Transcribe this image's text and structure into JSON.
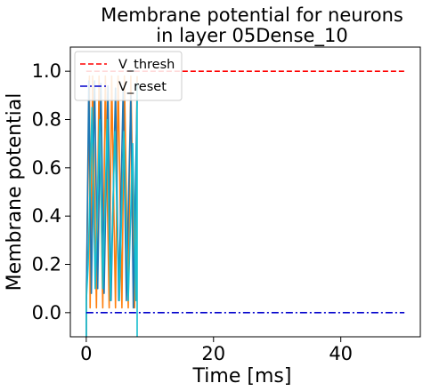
{
  "chart_data": {
    "type": "line",
    "title_line1": "Membrane potential for neurons",
    "title_line2": "in layer 05Dense_10",
    "xlabel": "Time [ms]",
    "ylabel": "Membrane potential",
    "xlim": [
      -2.5,
      52.5
    ],
    "ylim": [
      -0.1,
      1.1
    ],
    "xticks": [
      0,
      20,
      40
    ],
    "xtick_labels": [
      "0",
      "20",
      "40"
    ],
    "yticks": [
      0.0,
      0.2,
      0.4,
      0.6,
      0.8,
      1.0
    ],
    "ytick_labels": [
      "0.0",
      "0.2",
      "0.4",
      "0.6",
      "0.8",
      "1.0"
    ],
    "grid": false,
    "legend_position": "top-left",
    "legend": [
      {
        "label": "V_thresh",
        "color": "#ff0000",
        "dash": "dashed"
      },
      {
        "label": "V_reset",
        "color": "#0000cc",
        "dash": "dashdot"
      }
    ],
    "reference_lines": [
      {
        "name": "V_thresh",
        "y": 1.0,
        "x": [
          0,
          50
        ],
        "color": "#ff0000",
        "dash": "dashed"
      },
      {
        "name": "V_reset",
        "y": 0.0,
        "x": [
          0,
          50
        ],
        "color": "#0000cc",
        "dash": "dashdot"
      }
    ],
    "series": [
      {
        "color": "#ff7f0e",
        "x": [
          0,
          0,
          0.5,
          0.6,
          1,
          1.6,
          2,
          2.6,
          3,
          3.6,
          4,
          4.6,
          5,
          5.6,
          6,
          6.6,
          7,
          7.6,
          8
        ],
        "y": [
          -0.1,
          0.05,
          0.98,
          0.02,
          0.98,
          0.02,
          0.98,
          0.02,
          0.98,
          0.02,
          0.98,
          0.02,
          0.98,
          0.02,
          0.98,
          0.02,
          0.98,
          0.02,
          0.98
        ]
      },
      {
        "color": "#1f77b4",
        "x": [
          0,
          0,
          0.4,
          0.8,
          1.3,
          1.8,
          2.3,
          2.8,
          3.4,
          3.9,
          4.6,
          5.1,
          5.8,
          6.3,
          7,
          7.4,
          8
        ],
        "y": [
          -0.1,
          0.03,
          0.96,
          0.08,
          0.96,
          0.1,
          0.95,
          0.08,
          0.94,
          0.05,
          0.93,
          0.05,
          0.92,
          0.05,
          0.9,
          0.02,
          0.9
        ]
      },
      {
        "color": "#17becf",
        "x": [
          0,
          0,
          0.3,
          0.9,
          1.4,
          2.1,
          2.6,
          3.3,
          3.8,
          4.5,
          5.2,
          5.9,
          6.6,
          7.3,
          7.8,
          8,
          8
        ],
        "y": [
          -0.1,
          0.05,
          0.2,
          0.85,
          0.1,
          0.8,
          0.1,
          0.8,
          0.05,
          0.75,
          0.05,
          0.75,
          0.05,
          0.7,
          0.05,
          0.95,
          -0.1
        ]
      }
    ]
  }
}
